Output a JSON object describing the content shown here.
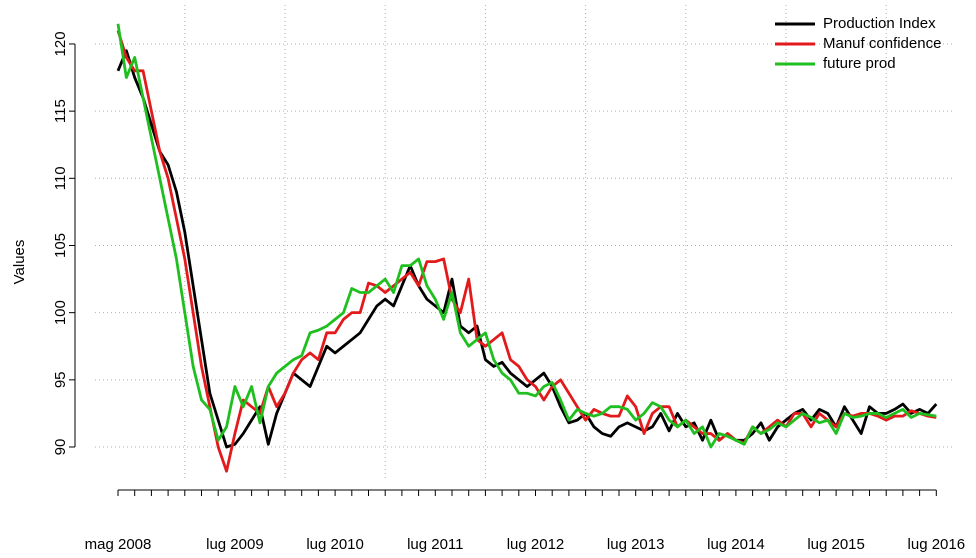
{
  "chart_data": {
    "type": "line",
    "y_label": "Values",
    "categories": [
      "mag 2008",
      null,
      null,
      null,
      null,
      null,
      null,
      null,
      null,
      null,
      null,
      null,
      null,
      null,
      "lug 2009",
      null,
      null,
      null,
      null,
      null,
      null,
      null,
      null,
      null,
      null,
      null,
      "lug 2010",
      null,
      null,
      null,
      null,
      null,
      null,
      null,
      null,
      null,
      null,
      null,
      "lug 2011",
      null,
      null,
      null,
      null,
      null,
      null,
      null,
      null,
      null,
      null,
      null,
      "lug 2012",
      null,
      null,
      null,
      null,
      null,
      null,
      null,
      null,
      null,
      null,
      null,
      "lug 2013",
      null,
      null,
      null,
      null,
      null,
      null,
      null,
      null,
      null,
      null,
      null,
      "lug 2014",
      null,
      null,
      null,
      null,
      null,
      null,
      null,
      null,
      null,
      null,
      null,
      "lug 2015",
      null,
      null,
      null,
      null,
      null,
      null,
      null,
      null,
      null,
      null,
      null,
      "lug 2016"
    ],
    "series": [
      {
        "name": "Production Index",
        "color": "#000000",
        "values": [
          118,
          119.5,
          117.5,
          116,
          114,
          112,
          111,
          109,
          106,
          102,
          98,
          94,
          92,
          90,
          90.2,
          91,
          92,
          93,
          90.2,
          92.5,
          94,
          95.5,
          95,
          94.5,
          96,
          97.5,
          97,
          97.5,
          98,
          98.5,
          99.5,
          100.5,
          101,
          100.5,
          102,
          103.5,
          102,
          101,
          100.5,
          100,
          102.5,
          99,
          98.5,
          99,
          96.5,
          96,
          96.3,
          95.5,
          95,
          94.5,
          95,
          95.5,
          94.5,
          93,
          91.8,
          92,
          92.5,
          91.5,
          91,
          90.8,
          91.5,
          91.8,
          91.5,
          91.2,
          91.5,
          92.5,
          91.2,
          92.5,
          91.5,
          91.8,
          90.5,
          92,
          90.5,
          91,
          90.5,
          90.5,
          91,
          91.8,
          90.5,
          91.5,
          92,
          92.5,
          92.8,
          92,
          92.8,
          92.5,
          91.5,
          93,
          92,
          91,
          93,
          92.5,
          92.5,
          92.8,
          93.2,
          92.5,
          92.8,
          92.5,
          93.2
        ]
      },
      {
        "name": "Manuf confidence",
        "color": "#e31a1c",
        "values": [
          121,
          119,
          118,
          118,
          115,
          112,
          110,
          107,
          104,
          100,
          96,
          93,
          90,
          88.2,
          91,
          93.5,
          93,
          92.5,
          94.5,
          93,
          94,
          95.5,
          96.5,
          97,
          96.5,
          98.5,
          98.5,
          99.5,
          100,
          100,
          102.2,
          102,
          101.5,
          102,
          102.5,
          103,
          102,
          103.8,
          103.8,
          104,
          101,
          100,
          102.5,
          98,
          97.5,
          98,
          98.5,
          96.5,
          96,
          95,
          94.5,
          93.5,
          94.5,
          95,
          94,
          93,
          92,
          92.8,
          92.5,
          92.3,
          92.3,
          93.8,
          93,
          91,
          92.5,
          93,
          93,
          91.5,
          92,
          91.5,
          91,
          91,
          90.5,
          91,
          90.5,
          90.3,
          91.5,
          91,
          91.5,
          92,
          91.5,
          92.5,
          92.5,
          91.5,
          92.5,
          92,
          91.5,
          92.5,
          92.3,
          92.5,
          92.5,
          92.3,
          92,
          92.3,
          92.3,
          92.7,
          92.5,
          92.3,
          92.2
        ]
      },
      {
        "name": "future prod",
        "color": "#1fbf1f",
        "values": [
          121.5,
          117.5,
          119,
          116,
          113,
          110,
          107,
          104,
          100,
          96,
          93.5,
          92.8,
          90.5,
          91.5,
          94.5,
          93,
          94.5,
          91.8,
          94.5,
          95.5,
          96,
          96.5,
          96.8,
          98.5,
          98.7,
          99,
          99.5,
          100,
          101.8,
          101.5,
          101.5,
          102,
          102.5,
          101.5,
          103.5,
          103.5,
          104,
          102,
          101,
          99.5,
          101.5,
          98.5,
          97.5,
          98,
          98.5,
          96.5,
          95.5,
          95,
          94,
          94,
          93.8,
          94.5,
          94.8,
          93.5,
          92,
          92.8,
          92.5,
          92.3,
          92.5,
          93,
          93,
          92.8,
          92,
          92.5,
          93.3,
          93,
          92,
          91.5,
          92,
          91,
          91.5,
          90,
          91,
          90.8,
          90.5,
          90.2,
          91.5,
          91,
          91.3,
          91.8,
          91.5,
          92,
          92.5,
          92.2,
          91.8,
          92,
          91,
          92.5,
          92.2,
          92.3,
          92.5,
          92.5,
          92.2,
          92.5,
          92.8,
          92.2,
          92.5,
          92.4,
          92.3
        ]
      }
    ],
    "ylim": [
      86.8,
      122.9
    ],
    "yticks": [
      90,
      95,
      100,
      105,
      110,
      115,
      120
    ],
    "grid": true,
    "legend": "top-right"
  }
}
